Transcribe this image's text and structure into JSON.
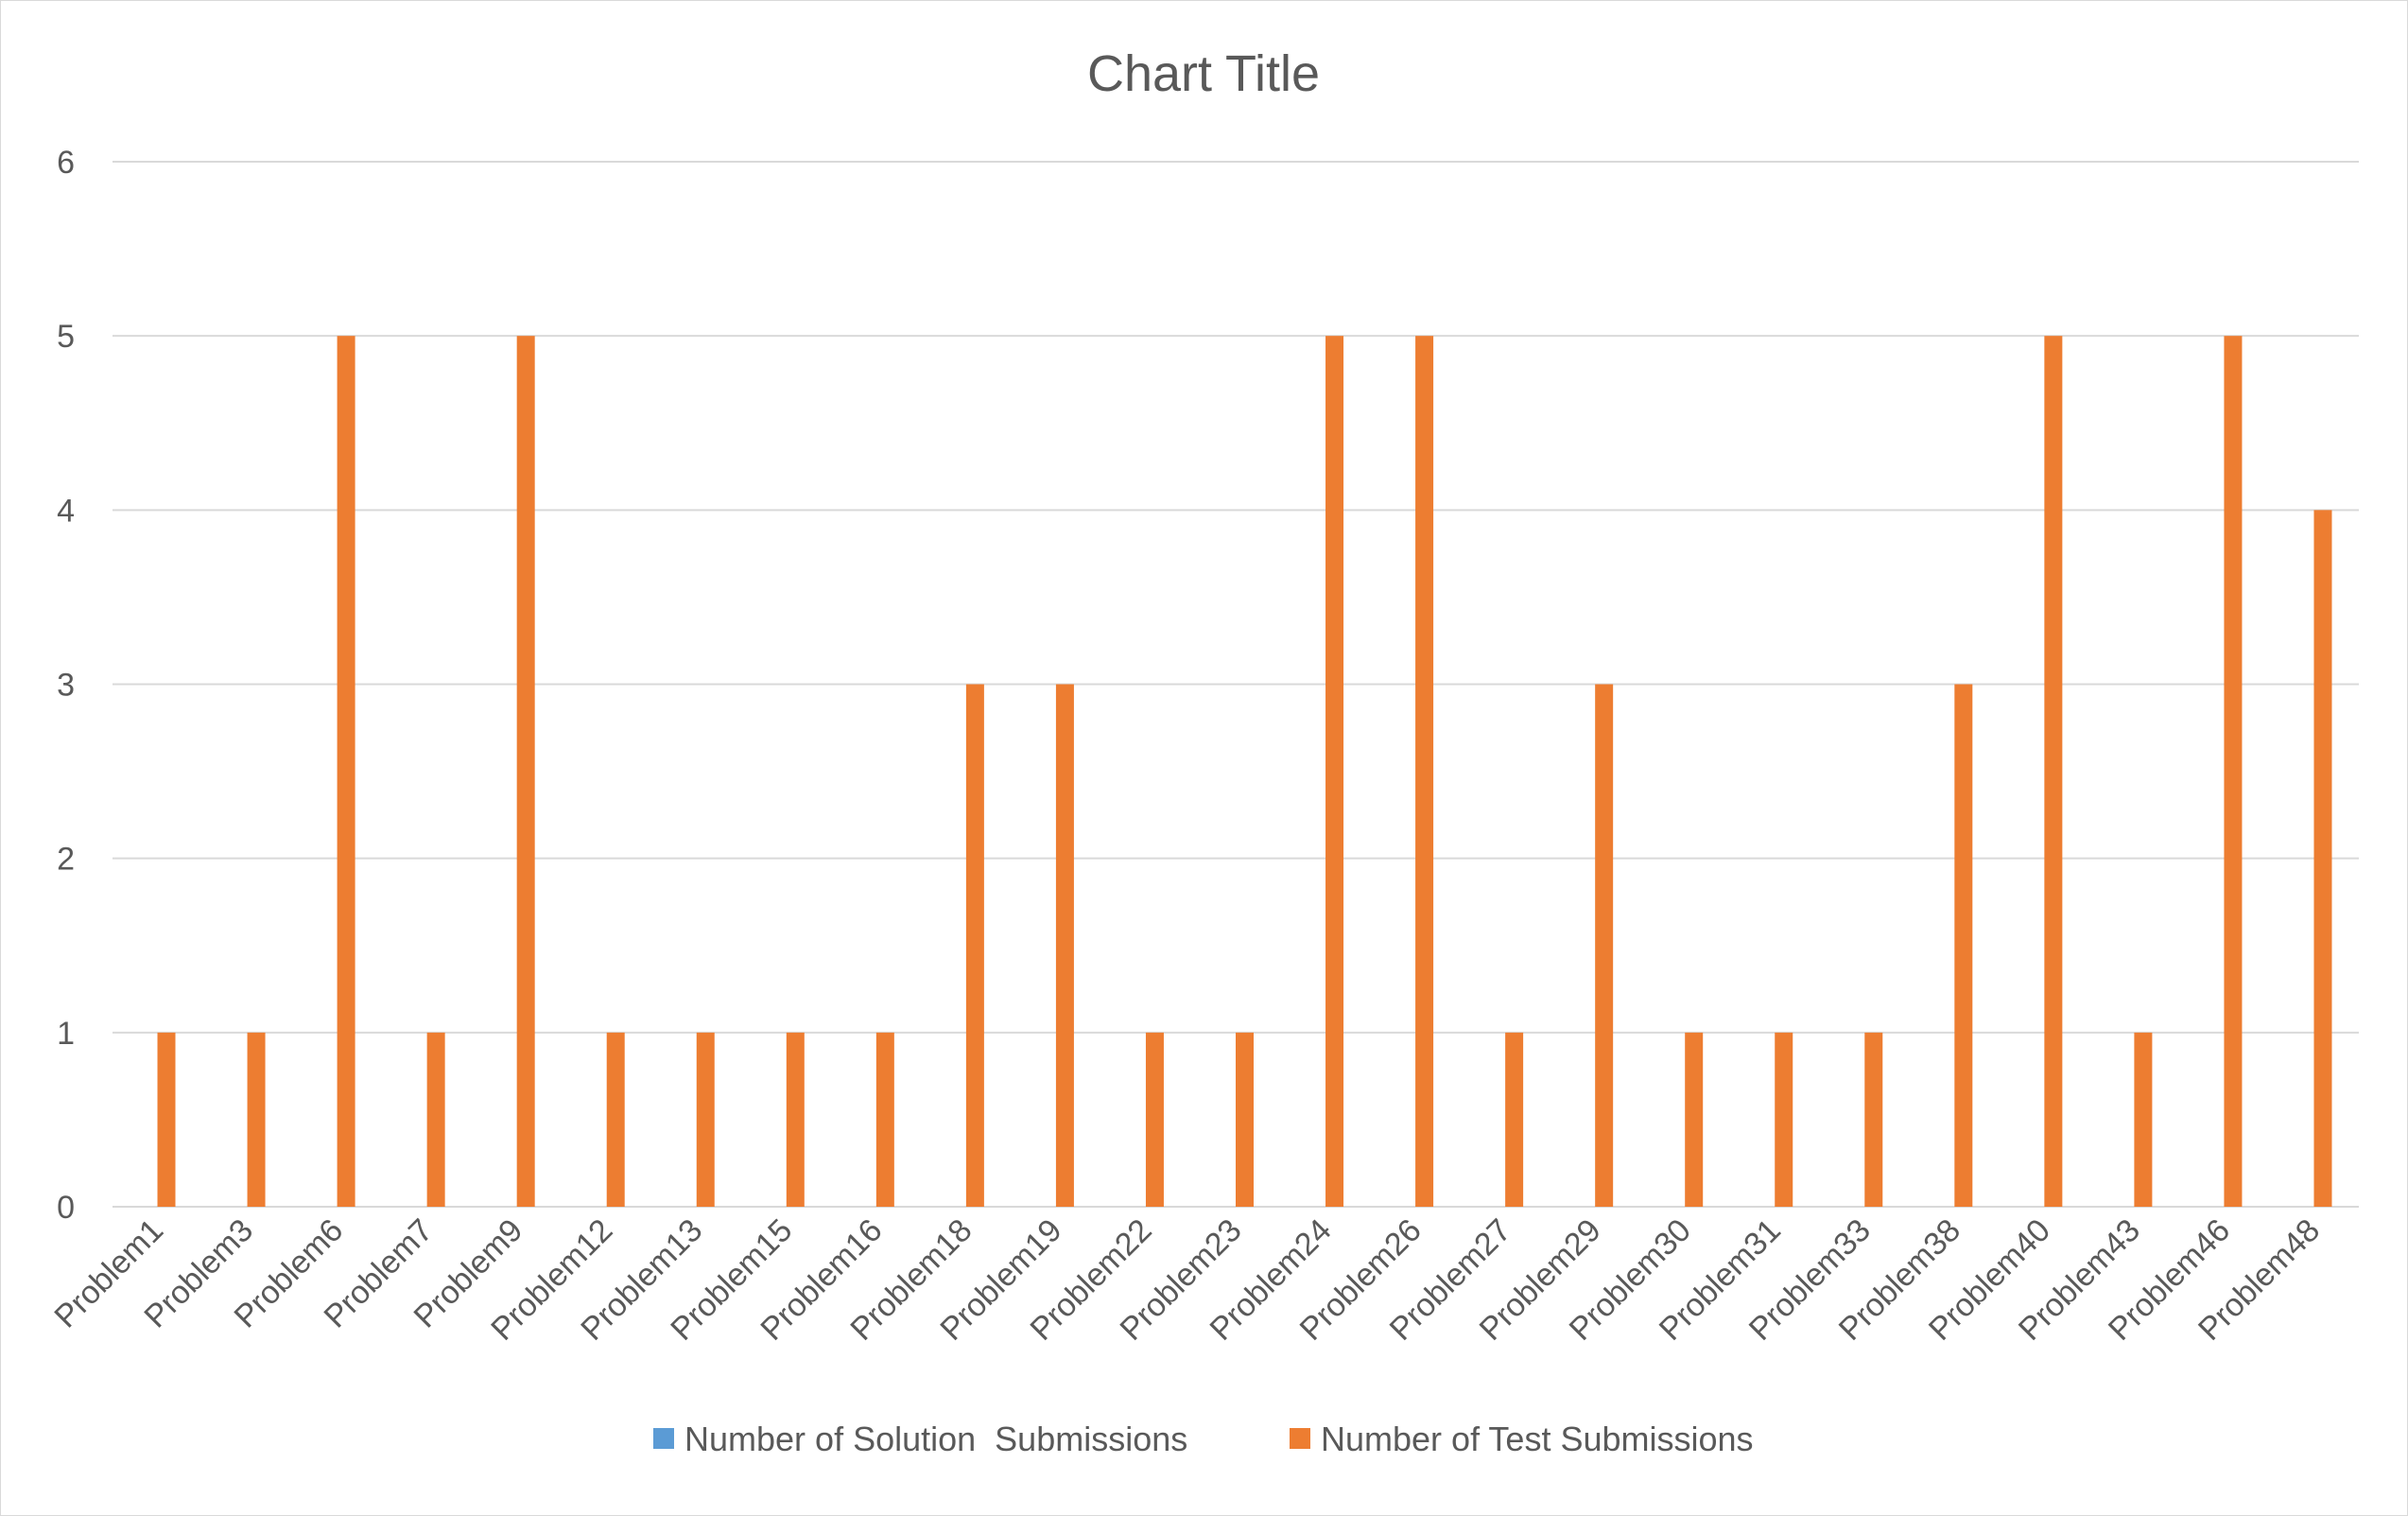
{
  "chart_data": {
    "type": "bar",
    "title": "Chart Title",
    "xlabel": "",
    "ylabel": "",
    "categories": [
      "Problem1",
      "Problem3",
      "Problem6",
      "Problem7",
      "Problem9",
      "Problem12",
      "Problem13",
      "Problem15",
      "Problem16",
      "Problem18",
      "Problem19",
      "Problem22",
      "Problem23",
      "Problem24",
      "Problem26",
      "Problem27",
      "Problem29",
      "Problem30",
      "Problem31",
      "Problem33",
      "Problem38",
      "Problem40",
      "Problem43",
      "Problem46",
      "Problem48"
    ],
    "series": [
      {
        "name": "Number of Solution  Submissions",
        "color": "#5B9BD5",
        "values": [
          0,
          0,
          0,
          0,
          0,
          0,
          0,
          0,
          0,
          0,
          0,
          0,
          0,
          0,
          0,
          0,
          0,
          0,
          0,
          0,
          0,
          0,
          0,
          0,
          0
        ]
      },
      {
        "name": "Number of Test Submissions",
        "color": "#ED7D31",
        "values": [
          1,
          1,
          5,
          1,
          5,
          1,
          1,
          1,
          1,
          3,
          3,
          1,
          1,
          5,
          5,
          1,
          3,
          1,
          1,
          1,
          3,
          5,
          1,
          5,
          4
        ]
      }
    ],
    "ylim": [
      0,
      6
    ],
    "yticks": [
      0,
      1,
      2,
      3,
      4,
      5,
      6
    ],
    "grid": true,
    "legend_position": "bottom"
  }
}
